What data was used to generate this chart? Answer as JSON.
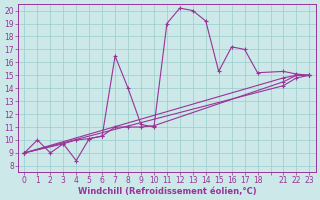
{
  "xlabel": "Windchill (Refroidissement éolien,°C)",
  "background_color": "#cce8e8",
  "line_color": "#993399",
  "grid_color": "#99cccc",
  "xtick_labels": [
    "0",
    "1",
    "2",
    "3",
    "4",
    "5",
    "6",
    "7",
    "8",
    "9",
    "10",
    "11",
    "12",
    "13",
    "14",
    "15",
    "16",
    "17",
    "18",
    "",
    "21",
    "22",
    "23"
  ],
  "yticks": [
    8,
    9,
    10,
    11,
    12,
    13,
    14,
    15,
    16,
    17,
    18,
    19,
    20
  ],
  "series1_xi": [
    0,
    1,
    2,
    3,
    4,
    5,
    6,
    7,
    8,
    9,
    10,
    11,
    12,
    13,
    14,
    15,
    16,
    17,
    18,
    20,
    21,
    22
  ],
  "series1_y": [
    9,
    10,
    9,
    9.7,
    8.4,
    10.1,
    10.3,
    16.5,
    14.0,
    11.2,
    11.0,
    19.0,
    20.2,
    20.0,
    19.2,
    15.3,
    17.2,
    17.0,
    15.2,
    15.3,
    15.1,
    15.0
  ],
  "series2_xi": [
    0,
    20,
    21,
    22
  ],
  "series2_y": [
    9,
    14.8,
    15.0,
    15.0
  ],
  "series3_xi": [
    0,
    3,
    4,
    5,
    6,
    7,
    8,
    9,
    10,
    20,
    21,
    22
  ],
  "series3_y": [
    9,
    9.7,
    10.0,
    10.1,
    10.3,
    11.0,
    11.0,
    11.0,
    11.1,
    14.5,
    15.0,
    15.0
  ],
  "series4_xi": [
    0,
    20,
    21,
    22
  ],
  "series4_y": [
    9,
    14.2,
    14.8,
    15.0
  ],
  "xlim": [
    -0.5,
    22.5
  ],
  "ylim": [
    7.5,
    20.5
  ],
  "tick_fontsize": 5.5,
  "xlabel_fontsize": 6
}
